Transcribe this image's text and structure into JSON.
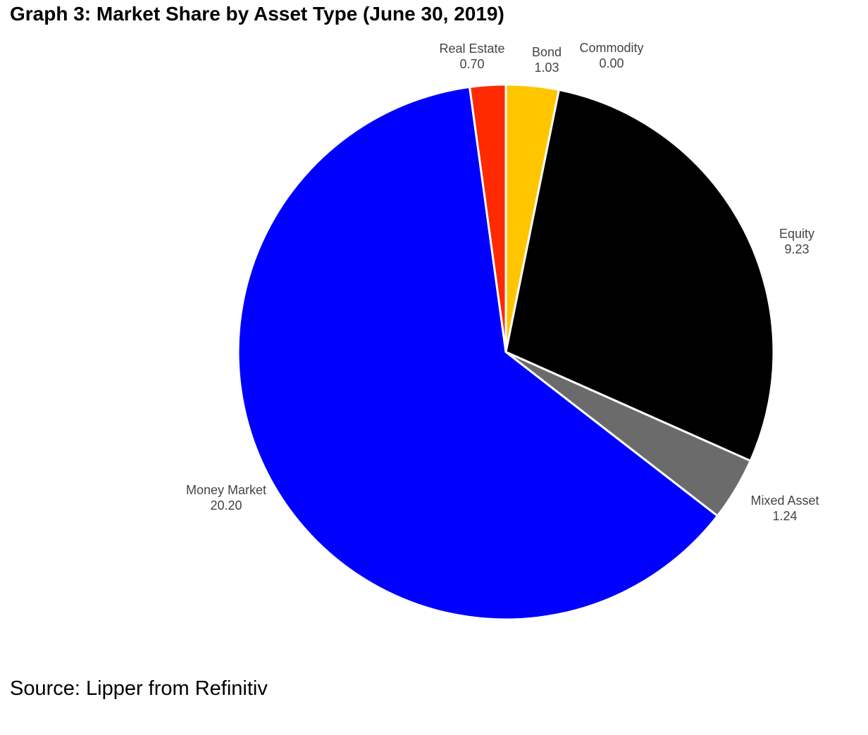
{
  "title": "Graph 3: Market Share by Asset Type (June 30, 2019)",
  "source": "Source: Lipper from Refinitiv",
  "chart_data": {
    "type": "pie",
    "title": "Graph 3: Market Share by Asset Type (June 30, 2019)",
    "categories": [
      "Bond",
      "Commodity",
      "Equity",
      "Mixed Asset",
      "Money Market",
      "Real Estate"
    ],
    "values": [
      1.03,
      0.0,
      9.23,
      1.24,
      20.2,
      0.7
    ],
    "value_labels": [
      "1.03",
      "0.00",
      "9.23",
      "1.24",
      "20.20",
      "0.70"
    ],
    "colors": [
      "#ffc600",
      "#8a8a8a",
      "#000000",
      "#6b6b6b",
      "#0000ff",
      "#ff2a00"
    ],
    "start": "12 o'clock",
    "direction": "clockwise",
    "legend": "none",
    "grid": false
  }
}
